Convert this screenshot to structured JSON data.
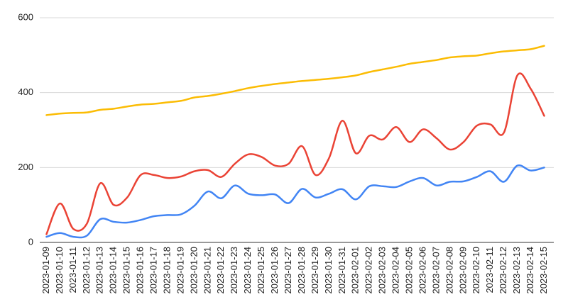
{
  "chart_data": {
    "type": "line",
    "categories": [
      "2023-01-09",
      "2023-01-10",
      "2023-01-11",
      "2023-01-12",
      "2023-01-13",
      "2023-01-14",
      "2023-01-15",
      "2023-01-16",
      "2023-01-17",
      "2023-01-18",
      "2023-01-19",
      "2023-01-20",
      "2023-01-21",
      "2023-01-22",
      "2023-01-23",
      "2023-01-24",
      "2023-01-25",
      "2023-01-26",
      "2023-01-27",
      "2023-01-28",
      "2023-01-29",
      "2023-01-30",
      "2023-01-31",
      "2023-02-01",
      "2023-02-02",
      "2023-02-03",
      "2023-02-04",
      "2023-02-05",
      "2023-02-06",
      "2023-02-07",
      "2023-02-08",
      "2023-02-09",
      "2023-02-10",
      "2023-02-11",
      "2023-02-12",
      "2023-02-13",
      "2023-02-14",
      "2023-02-15"
    ],
    "series": [
      {
        "color": "#fbbc04",
        "values": [
          340,
          344,
          346,
          347,
          354,
          357,
          363,
          368,
          370,
          374,
          378,
          387,
          391,
          397,
          404,
          412,
          418,
          423,
          427,
          431,
          434,
          437,
          441,
          446,
          455,
          462,
          469,
          477,
          482,
          487,
          494,
          497,
          499,
          505,
          510,
          513,
          516,
          525
        ]
      },
      {
        "color": "#ea4335",
        "values": [
          22,
          104,
          36,
          50,
          158,
          100,
          120,
          180,
          180,
          172,
          176,
          190,
          193,
          175,
          210,
          235,
          228,
          205,
          210,
          257,
          180,
          225,
          325,
          238,
          285,
          275,
          308,
          268,
          302,
          278,
          248,
          268,
          312,
          315,
          293,
          446,
          410,
          338
        ]
      },
      {
        "color": "#4285f4",
        "values": [
          15,
          25,
          15,
          18,
          62,
          55,
          53,
          60,
          70,
          73,
          75,
          98,
          136,
          118,
          152,
          130,
          126,
          128,
          105,
          143,
          120,
          130,
          142,
          115,
          150,
          150,
          148,
          163,
          172,
          152,
          162,
          163,
          175,
          190,
          162,
          205,
          192,
          200
        ]
      }
    ],
    "ylim": [
      0,
      600
    ],
    "yticks": [
      0,
      200,
      400,
      600
    ],
    "grid": true
  }
}
